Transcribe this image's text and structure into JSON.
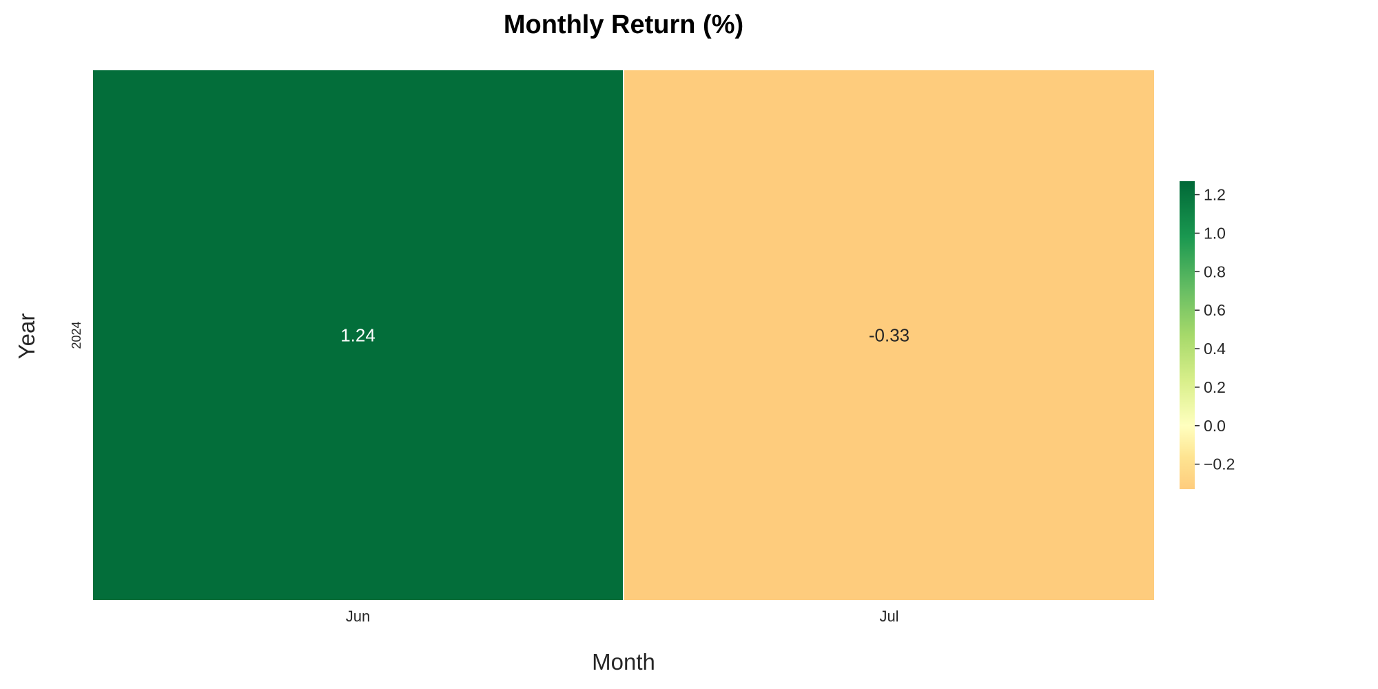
{
  "chart_data": {
    "type": "heatmap",
    "title": "Monthly Return (%)",
    "xlabel": "Month",
    "ylabel": "Year",
    "x_categories": [
      "Jun",
      "Jul"
    ],
    "y_categories": [
      "2024"
    ],
    "values": [
      [
        1.24,
        -0.33
      ]
    ],
    "cell_labels": [
      [
        "1.24",
        "-0.33"
      ]
    ],
    "annotation_colors": [
      [
        "#ffffff",
        "#262626"
      ]
    ],
    "colormap": "RdYlGn",
    "colorbar": {
      "vmin": -0.33,
      "vmax": 1.27,
      "center": 0,
      "ticks": [
        1.2,
        1.0,
        0.8,
        0.6,
        0.4,
        0.2,
        0.0,
        -0.2
      ],
      "tick_labels": [
        "1.2",
        "1.0",
        "0.8",
        "0.6",
        "0.4",
        "0.2",
        "0.0",
        "−0.2"
      ],
      "placement": "right"
    },
    "grid": false,
    "legend": "none"
  }
}
